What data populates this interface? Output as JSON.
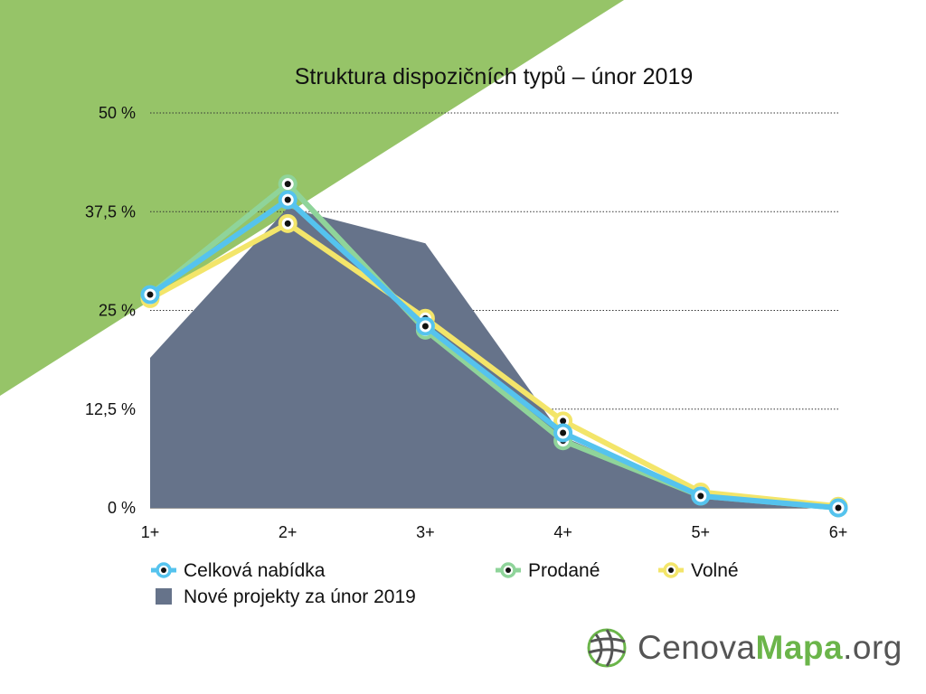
{
  "colors": {
    "background_accent": "#96c468",
    "total": "#55c3ee",
    "sold": "#8fd49a",
    "free": "#f3e56a",
    "new_projects": "#66738a",
    "grid": "#333333"
  },
  "chart_data": {
    "type": "line",
    "title": "Struktura dispozičních typů – únor 2019",
    "categories": [
      "1+",
      "2+",
      "3+",
      "4+",
      "5+",
      "6+"
    ],
    "y_ticks": [
      "50 %",
      "37,5 %",
      "25 %",
      "12,5 %",
      "0 %"
    ],
    "ylim": [
      0,
      50
    ],
    "grid": true,
    "legend_position": "bottom",
    "series": [
      {
        "name": "Nové projekty za únor 2019",
        "kind": "area",
        "color": "#66738a",
        "values": [
          19,
          38,
          33.5,
          9,
          1.5,
          0
        ]
      },
      {
        "name": "Prodané",
        "kind": "line",
        "color": "#8fd49a",
        "values": [
          27,
          41,
          22.5,
          8.5,
          1.5,
          0
        ]
      },
      {
        "name": "Volné",
        "kind": "line",
        "color": "#f3e56a",
        "values": [
          26.5,
          36,
          24,
          11,
          2,
          0.2
        ]
      },
      {
        "name": "Celková nabídka",
        "kind": "line",
        "color": "#55c3ee",
        "values": [
          27,
          39,
          23,
          9.5,
          1.5,
          0
        ]
      }
    ],
    "legend": [
      {
        "label": "Celková nabídka",
        "series": "Celková nabídka",
        "marker": "dot"
      },
      {
        "label": "Prodané",
        "series": "Prodané",
        "marker": "dot"
      },
      {
        "label": "Volné",
        "series": "Volné",
        "marker": "dot"
      },
      {
        "label": "Nové projekty za únor 2019",
        "series": "Nové projekty za únor 2019",
        "marker": "square"
      }
    ]
  },
  "logo": {
    "icon": "globe-grid-icon",
    "part1": "Cenova",
    "part2": "Mapa",
    "part3": ".org"
  }
}
